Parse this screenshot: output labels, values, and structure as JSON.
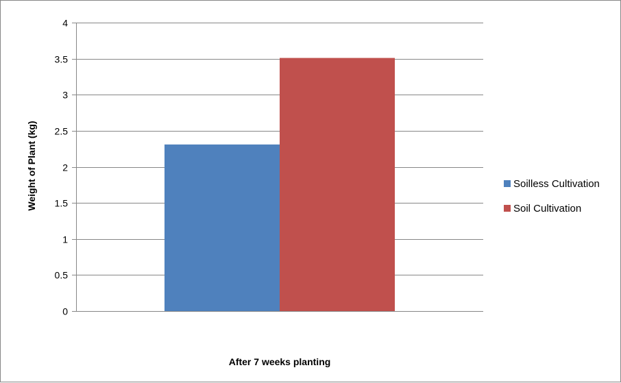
{
  "chart_data": {
    "type": "bar",
    "categories": [
      "After 7 weeks planting"
    ],
    "series": [
      {
        "name": "Soilless Cultivation",
        "values": [
          2.31
        ],
        "color": "#4F81BD"
      },
      {
        "name": "Soil Cultivation",
        "values": [
          3.51
        ],
        "color": "#C0504D"
      }
    ],
    "title": "",
    "xlabel": "After 7 weeks planting",
    "ylabel": "Weight of Plant (kg)",
    "ylim": [
      0,
      4
    ],
    "yticks": [
      0,
      0.5,
      1,
      1.5,
      2,
      2.5,
      3,
      3.5,
      4
    ],
    "ytick_labels": [
      "0",
      "0.5",
      "1",
      "1.5",
      "2",
      "2.5",
      "3",
      "3.5",
      "4"
    ],
    "grid": true,
    "legend_position": "right",
    "gridline_color": "#868686"
  }
}
